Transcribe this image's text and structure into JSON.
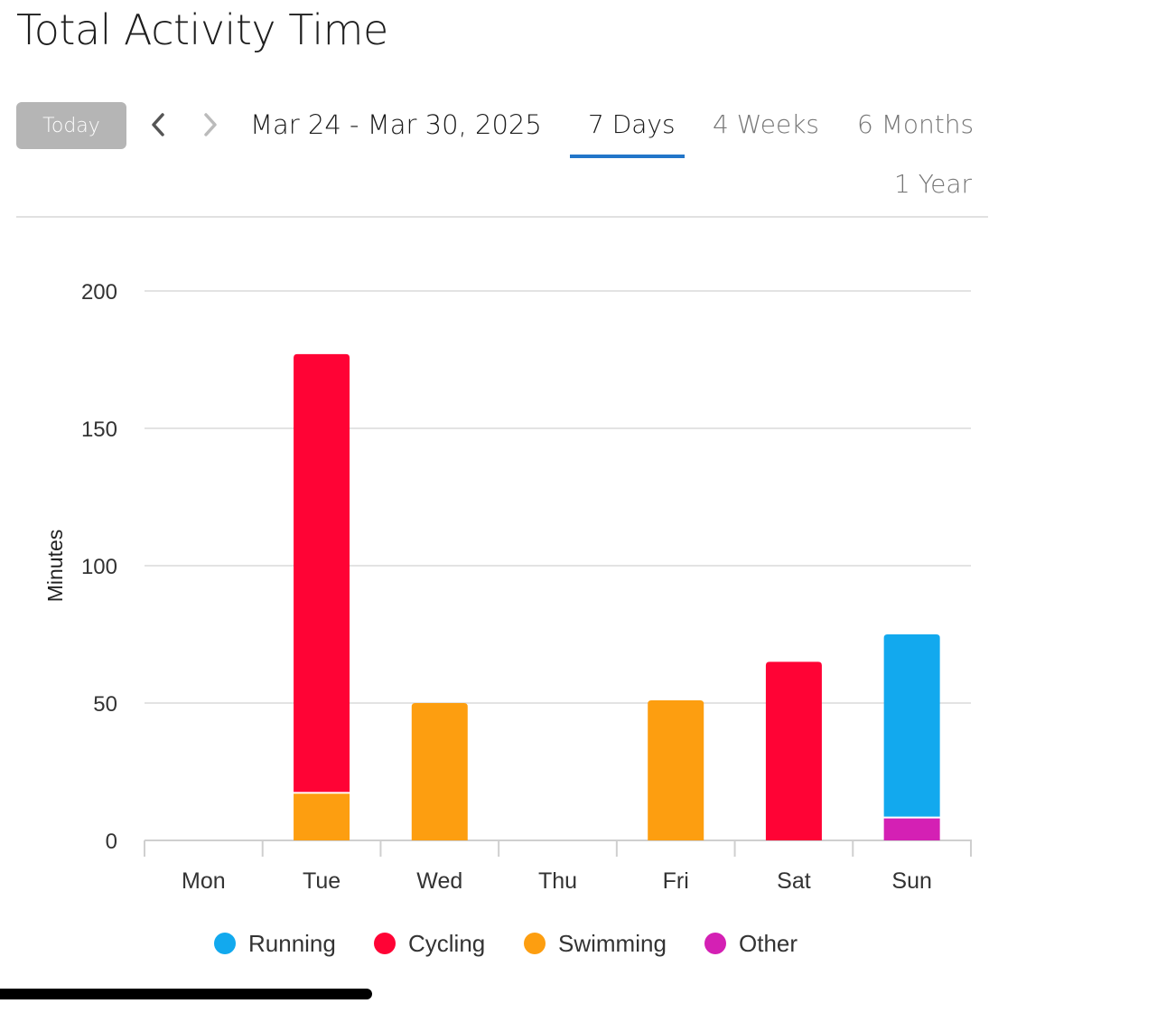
{
  "header": {
    "title": "Total Activity Time"
  },
  "controls": {
    "today_label": "Today",
    "date_range": "Mar 24 - Mar 30, 2025",
    "tabs": [
      {
        "label": "7 Days",
        "active": true
      },
      {
        "label": "4 Weeks",
        "active": false
      },
      {
        "label": "6 Months",
        "active": false
      },
      {
        "label": "1 Year",
        "active": false
      }
    ]
  },
  "colors": {
    "accent": "#2276c9",
    "Running": "#12a9ee",
    "Cycling": "#ff0335",
    "Swimming": "#fd9e10",
    "Other": "#d420b4"
  },
  "chart_data": {
    "type": "bar",
    "stacked": true,
    "categories": [
      "Mon",
      "Tue",
      "Wed",
      "Thu",
      "Fri",
      "Sat",
      "Sun"
    ],
    "series": [
      {
        "name": "Other",
        "values": [
          0,
          0,
          0,
          0,
          0,
          0,
          8
        ]
      },
      {
        "name": "Swimming",
        "values": [
          0,
          17,
          50,
          0,
          51,
          0,
          0
        ]
      },
      {
        "name": "Cycling",
        "values": [
          0,
          160,
          0,
          0,
          0,
          65,
          0
        ]
      },
      {
        "name": "Running",
        "values": [
          0,
          0,
          0,
          0,
          0,
          0,
          67
        ]
      }
    ],
    "legend_order": [
      "Running",
      "Cycling",
      "Swimming",
      "Other"
    ],
    "ylabel": "Minutes",
    "ylim": [
      0,
      200
    ],
    "yticks": [
      0,
      50,
      100,
      150,
      200
    ],
    "grid": true,
    "legend_position": "bottom"
  }
}
